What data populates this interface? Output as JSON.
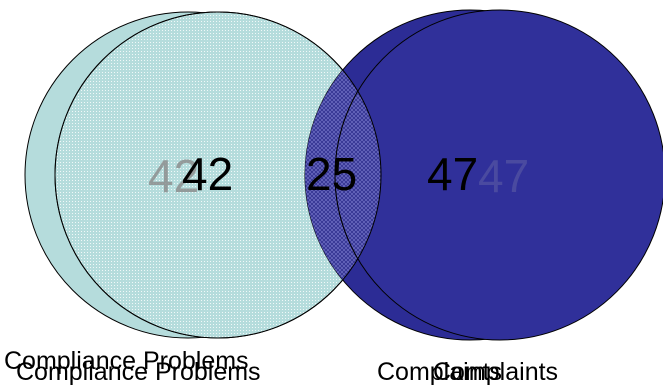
{
  "colors": {
    "left_fill": "#b5dcdc",
    "right_fill": "#2c2c95",
    "overlap_fill": "#6f6fbf",
    "outline": "#000000",
    "text": "#000000",
    "ghost_text": "#8a8a8a"
  },
  "venn": {
    "left": {
      "label": "Compliance Problems",
      "value": "42"
    },
    "overlap": {
      "value": "25"
    },
    "right": {
      "label": "Complaints",
      "value": "47"
    }
  }
}
